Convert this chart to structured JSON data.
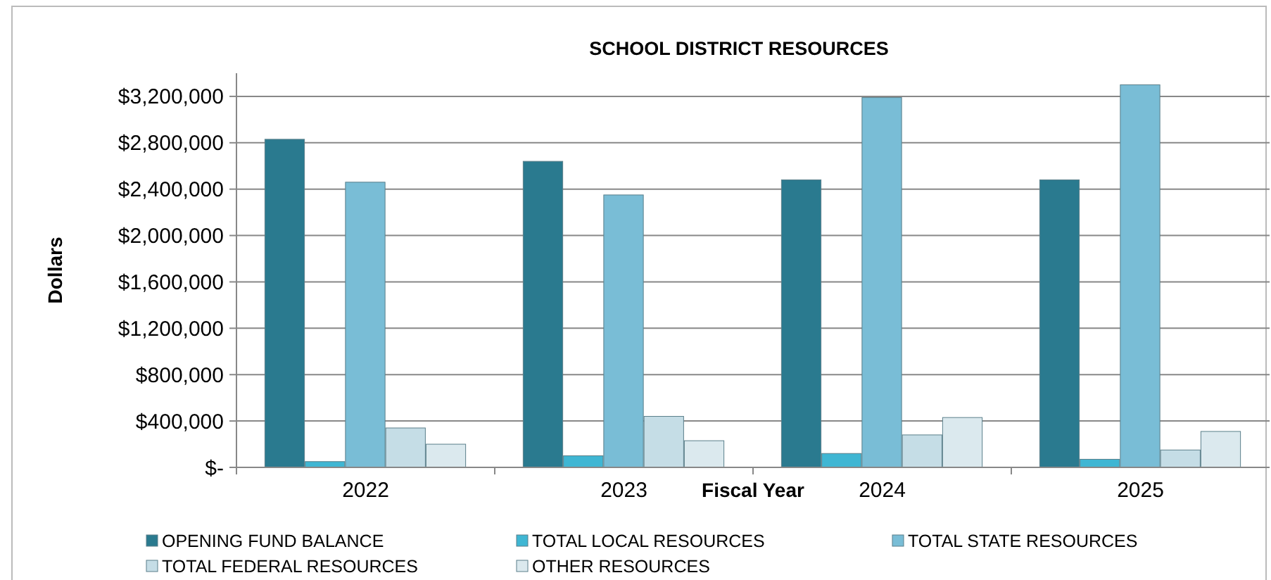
{
  "chart_data": {
    "type": "bar",
    "title": "SCHOOL DISTRICT RESOURCES",
    "xlabel": "Fiscal Year",
    "ylabel": "Dollars",
    "categories": [
      "2022",
      "2023",
      "2024",
      "2025"
    ],
    "series": [
      {
        "name": "OPENING FUND BALANCE",
        "color": "#2a7a8f",
        "values": [
          2830000,
          2640000,
          2480000,
          2480000
        ]
      },
      {
        "name": "TOTAL LOCAL RESOURCES",
        "color": "#3fb6d3",
        "values": [
          50000,
          100000,
          120000,
          70000
        ]
      },
      {
        "name": "TOTAL STATE RESOURCES",
        "color": "#79bdd6",
        "values": [
          2460000,
          2350000,
          3190000,
          3300000
        ]
      },
      {
        "name": "TOTAL FEDERAL RESOURCES",
        "color": "#c5dde6",
        "values": [
          340000,
          440000,
          280000,
          150000
        ]
      },
      {
        "name": "OTHER RESOURCES",
        "color": "#dbe9ee",
        "values": [
          200000,
          230000,
          430000,
          310000
        ]
      }
    ],
    "ylim": [
      0,
      3400000
    ],
    "yticks": [
      {
        "value": 0,
        "label": "$-"
      },
      {
        "value": 400000,
        "label": "$400,000"
      },
      {
        "value": 800000,
        "label": "$800,000"
      },
      {
        "value": 1200000,
        "label": "$1,200,000"
      },
      {
        "value": 1600000,
        "label": "$1,600,000"
      },
      {
        "value": 2000000,
        "label": "$2,000,000"
      },
      {
        "value": 2400000,
        "label": "$2,400,000"
      },
      {
        "value": 2800000,
        "label": "$2,800,000"
      },
      {
        "value": 3200000,
        "label": "$3,200,000"
      }
    ],
    "grid": "y",
    "legend": "bottom"
  }
}
